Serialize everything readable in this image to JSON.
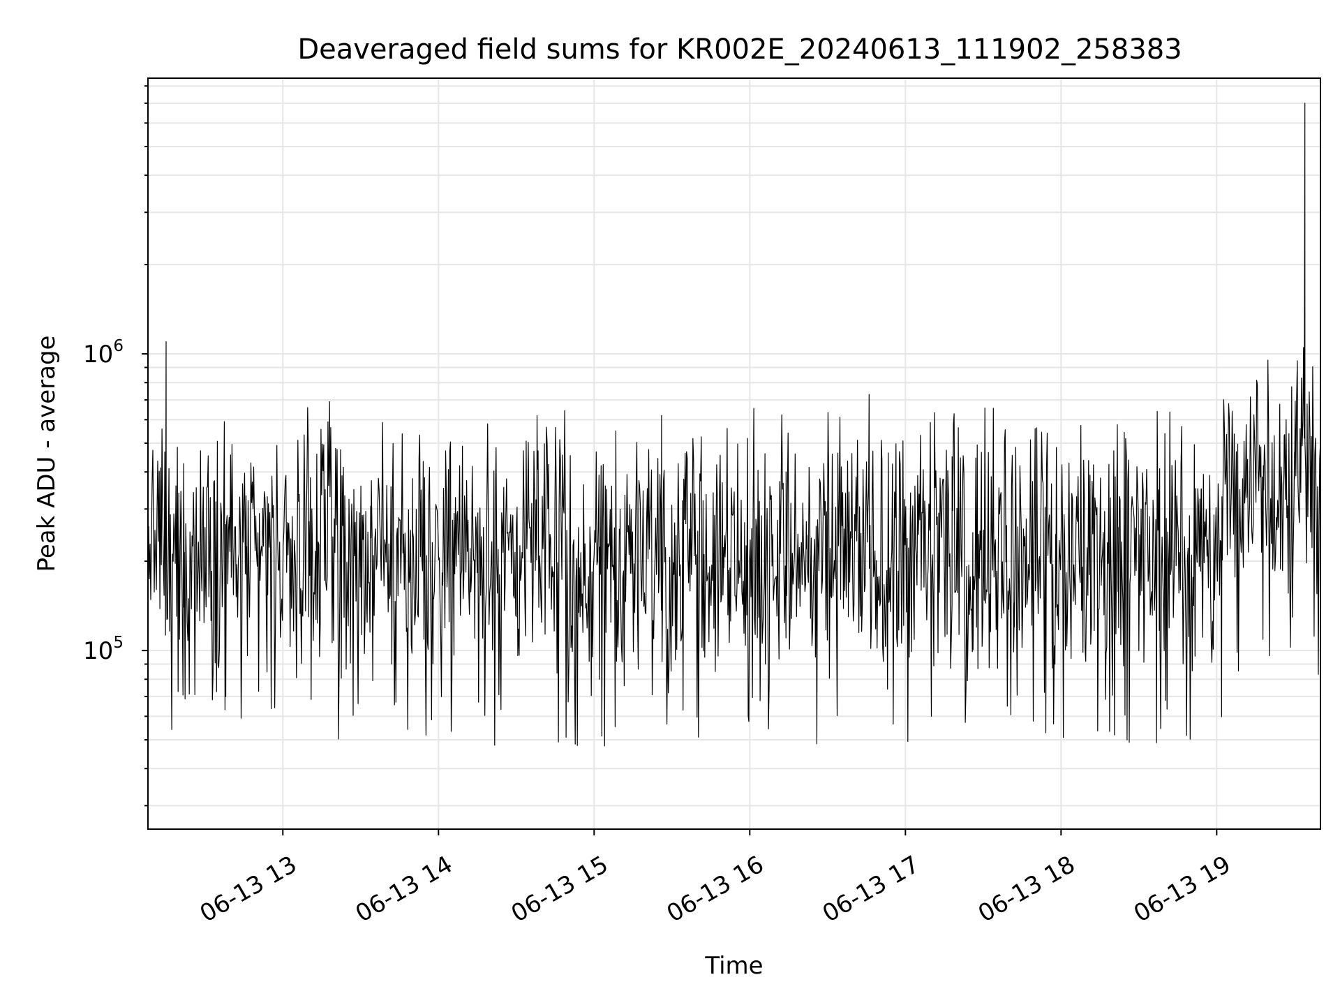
{
  "chart_data": {
    "type": "line",
    "title": "Deaveraged field sums for KR002E_20240613_111902_258383",
    "xlabel": "Time",
    "ylabel": "Peak ADU - average",
    "x_ticks": [
      "06-13 13",
      "06-13 14",
      "06-13 15",
      "06-13 16",
      "06-13 17",
      "06-13 18",
      "06-13 19"
    ],
    "y_ticks": [
      {
        "value": 100000,
        "base": "10",
        "exp": "5"
      },
      {
        "value": 1000000,
        "base": "10",
        "exp": "6"
      }
    ],
    "y_scale": "log",
    "xlim": [
      "2024-06-13 12:08",
      "2024-06-13 19:40"
    ],
    "ylim": [
      25000,
      8500000
    ],
    "grid": true,
    "line_color": "#000000",
    "grid_color": "#e6e6e6",
    "series": [
      {
        "x": [
          "2024-06-13 12:08",
          "2024-06-13 12:15",
          "2024-06-13 12:22",
          "2024-06-13 12:30",
          "2024-06-13 12:38",
          "2024-06-13 12:46",
          "2024-06-13 12:54",
          "2024-06-13 13:02",
          "2024-06-13 13:10",
          "2024-06-13 13:18",
          "2024-06-13 13:26",
          "2024-06-13 13:34",
          "2024-06-13 13:42",
          "2024-06-13 13:50",
          "2024-06-13 13:58",
          "2024-06-13 14:06",
          "2024-06-13 14:14",
          "2024-06-13 14:22",
          "2024-06-13 14:30",
          "2024-06-13 14:38",
          "2024-06-13 14:46",
          "2024-06-13 14:54",
          "2024-06-13 15:02",
          "2024-06-13 15:10",
          "2024-06-13 15:18",
          "2024-06-13 15:26",
          "2024-06-13 15:34",
          "2024-06-13 15:42",
          "2024-06-13 15:50",
          "2024-06-13 15:58",
          "2024-06-13 16:06",
          "2024-06-13 16:14",
          "2024-06-13 16:22",
          "2024-06-13 16:30",
          "2024-06-13 16:38",
          "2024-06-13 16:46",
          "2024-06-13 16:54",
          "2024-06-13 17:02",
          "2024-06-13 17:10",
          "2024-06-13 17:18",
          "2024-06-13 17:26",
          "2024-06-13 17:34",
          "2024-06-13 17:42",
          "2024-06-13 17:50",
          "2024-06-13 17:58",
          "2024-06-13 18:06",
          "2024-06-13 18:14",
          "2024-06-13 18:22",
          "2024-06-13 18:30",
          "2024-06-13 18:38",
          "2024-06-13 18:46",
          "2024-06-13 18:54",
          "2024-06-13 19:02",
          "2024-06-13 19:10",
          "2024-06-13 19:18",
          "2024-06-13 19:26",
          "2024-06-13 19:30",
          "2024-06-13 19:34",
          "2024-06-13 19:38",
          "2024-06-13 19:40"
        ],
        "y": [
          220000,
          1100000,
          140000,
          260000,
          70000,
          180000,
          330000,
          210000,
          130000,
          690000,
          160000,
          240000,
          90000,
          380000,
          150000,
          290000,
          110000,
          370000,
          130000,
          620000,
          170000,
          260000,
          80000,
          300000,
          200000,
          620000,
          120000,
          320000,
          190000,
          270000,
          90000,
          400000,
          220000,
          310000,
          130000,
          730000,
          190000,
          340000,
          60000,
          450000,
          250000,
          280000,
          120000,
          560000,
          140000,
          330000,
          170000,
          260000,
          100000,
          410000,
          160000,
          350000,
          330000,
          380000,
          420000,
          530000,
          380000,
          7000000,
          500000,
          450000
        ]
      }
    ]
  }
}
